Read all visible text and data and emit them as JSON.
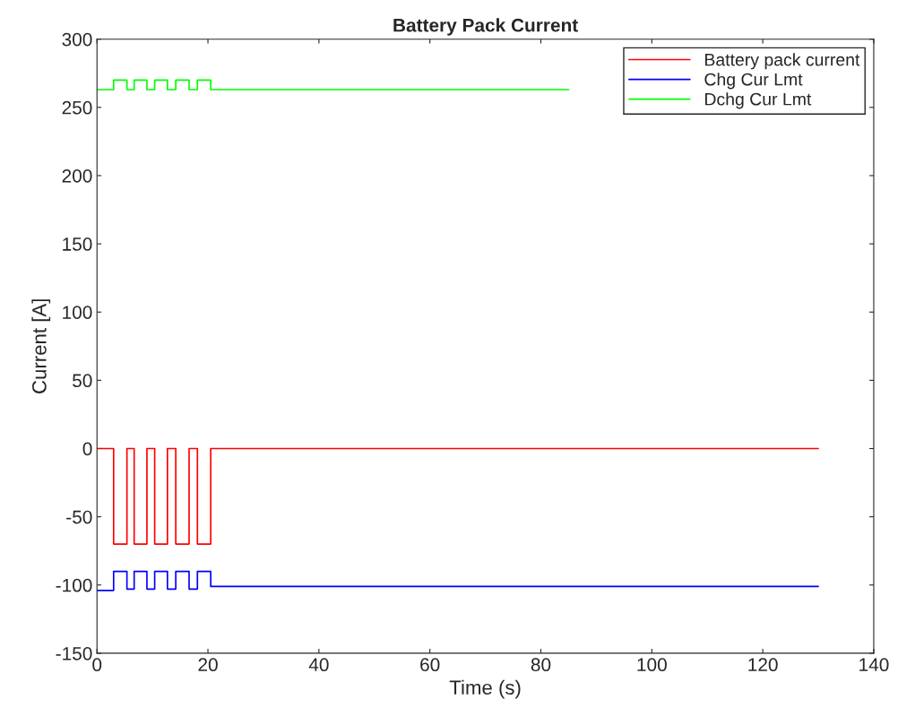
{
  "chart_data": {
    "type": "step",
    "title": "Battery Pack Current",
    "xlabel": "Time (s)",
    "ylabel": "Current [A]",
    "x": [
      0,
      3.0,
      5.4,
      6.7,
      9.0,
      10.4,
      12.7,
      14.2,
      16.6,
      18.1,
      20.5,
      130
    ],
    "series": [
      {
        "name": "Battery pack current",
        "color": "#ff0000",
        "values": [
          0,
          -70,
          0,
          -70,
          0,
          -70,
          0,
          -70,
          0,
          -70,
          0,
          0
        ]
      },
      {
        "name": "Chg Cur Lmt",
        "color": "#0000ff",
        "values": [
          -104,
          -90,
          -103,
          -90,
          -103,
          -90,
          -103,
          -90,
          -103,
          -90,
          -101,
          -101
        ]
      },
      {
        "name": "Dchg Cur Lmt",
        "color": "#00ff00",
        "x": [
          0,
          3.0,
          5.4,
          6.7,
          9.0,
          10.4,
          12.7,
          14.2,
          16.6,
          18.1,
          20.5,
          85
        ],
        "values": [
          263,
          270,
          263,
          270,
          263,
          270,
          263,
          270,
          263,
          270,
          263,
          263
        ]
      }
    ],
    "xlim": [
      0,
      140
    ],
    "xticks": [
      0,
      20,
      40,
      60,
      80,
      100,
      120,
      140
    ],
    "ylim": [
      -150,
      300
    ],
    "yticks": [
      -150,
      -100,
      -50,
      0,
      50,
      100,
      150,
      200,
      250,
      300
    ],
    "grid": false,
    "legend": "top right",
    "line_style": "solid",
    "marker": "none"
  }
}
